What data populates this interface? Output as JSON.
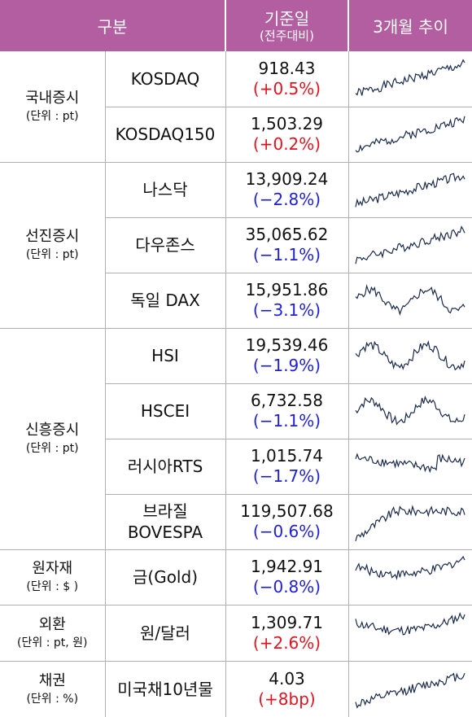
{
  "header": {
    "col_category": "구분",
    "col_value": "기준일",
    "col_value_sub": "(전주대비)",
    "col_trend": "3개월 추이"
  },
  "groups": [
    {
      "name": "국내증시",
      "unit": "(단위 : pt)",
      "rows": [
        {
          "index": "KOSDAQ",
          "value": "918.43",
          "change": "(+0.5%)",
          "dir": "up"
        },
        {
          "index": "KOSDAQ150",
          "value": "1,503.29",
          "change": "(+0.2%)",
          "dir": "up"
        }
      ]
    },
    {
      "name": "선진증시",
      "unit": "(단위 : pt)",
      "rows": [
        {
          "index": "나스닥",
          "value": "13,909.24",
          "change": "(−2.8%)",
          "dir": "down"
        },
        {
          "index": "다우존스",
          "value": "35,065.62",
          "change": "(−1.1%)",
          "dir": "down"
        },
        {
          "index": "독일 DAX",
          "value": "15,951.86",
          "change": "(−3.1%)",
          "dir": "down"
        }
      ]
    },
    {
      "name": "신흥증시",
      "unit": "(단위 : pt)",
      "rows": [
        {
          "index": "HSI",
          "value": "19,539.46",
          "change": "(−1.9%)",
          "dir": "down"
        },
        {
          "index": "HSCEI",
          "value": "6,732.58",
          "change": "(−1.1%)",
          "dir": "down"
        },
        {
          "index": "러시아RTS",
          "value": "1,015.74",
          "change": "(−1.7%)",
          "dir": "down"
        },
        {
          "index": "브라질",
          "index2": "BOVESPA",
          "value": "119,507.68",
          "change": "(−0.6%)",
          "dir": "down"
        }
      ]
    },
    {
      "name": "원자재",
      "unit": "(단위 : $ )",
      "rows": [
        {
          "index": "금(Gold)",
          "value": "1,942.91",
          "change": "(−0.8%)",
          "dir": "down"
        }
      ]
    },
    {
      "name": "외환",
      "unit": "(단위 : pt, 원)",
      "rows": [
        {
          "index": "원/달러",
          "value": "1,309.71",
          "change": "(+2.6%)",
          "dir": "up"
        }
      ]
    },
    {
      "name": "채권",
      "unit": "(단위 : %)",
      "rows": [
        {
          "index": "미국채10년물",
          "value": "4.03",
          "change": "(+8bp)",
          "dir": "up"
        }
      ]
    }
  ],
  "colors": {
    "header_bg": "#b35ea0",
    "up": "#e0141e",
    "down": "#1f1fd6",
    "spark": "#1a2a4a"
  }
}
